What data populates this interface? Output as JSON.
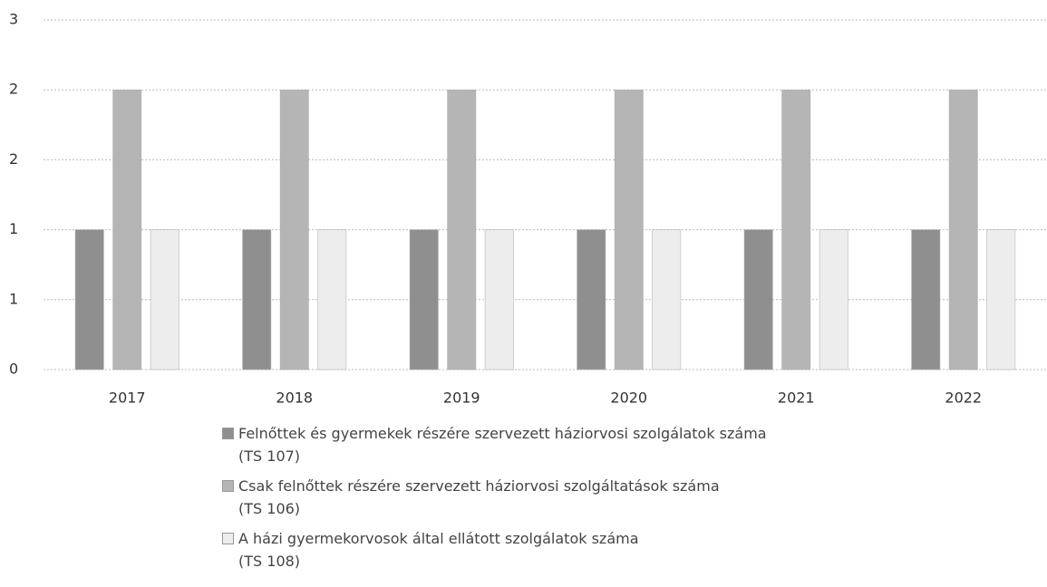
{
  "chart_data": {
    "type": "bar",
    "categories": [
      "2017",
      "2018",
      "2019",
      "2020",
      "2021",
      "2022"
    ],
    "series": [
      {
        "name": "Felnőttek és gyermekek részére szervezett háziorvosi szolgálatok száma\n(TS 107)",
        "color": "#8f8f8f",
        "values": [
          1,
          1,
          1,
          1,
          1,
          1
        ]
      },
      {
        "name": "Csak felnőttek részére szervezett háziorvosi szolgáltatások száma\n(TS 106)",
        "color": "#b5b5b5",
        "values": [
          2,
          2,
          2,
          2,
          2,
          2
        ]
      },
      {
        "name": "A házi gyermekorvosok által ellátott szolgálatok száma\n(TS 108)",
        "color": "#ededed",
        "values": [
          1,
          1,
          1,
          1,
          1,
          1
        ]
      }
    ],
    "ylim": [
      0,
      2.5
    ],
    "yticks": [
      0,
      {
        "value": 0.5,
        "label": "1"
      },
      1,
      {
        "value": 1.5,
        "label": "2"
      },
      2,
      {
        "value": 2.5,
        "label": "3"
      }
    ],
    "grid": true,
    "legend": "bottom"
  }
}
